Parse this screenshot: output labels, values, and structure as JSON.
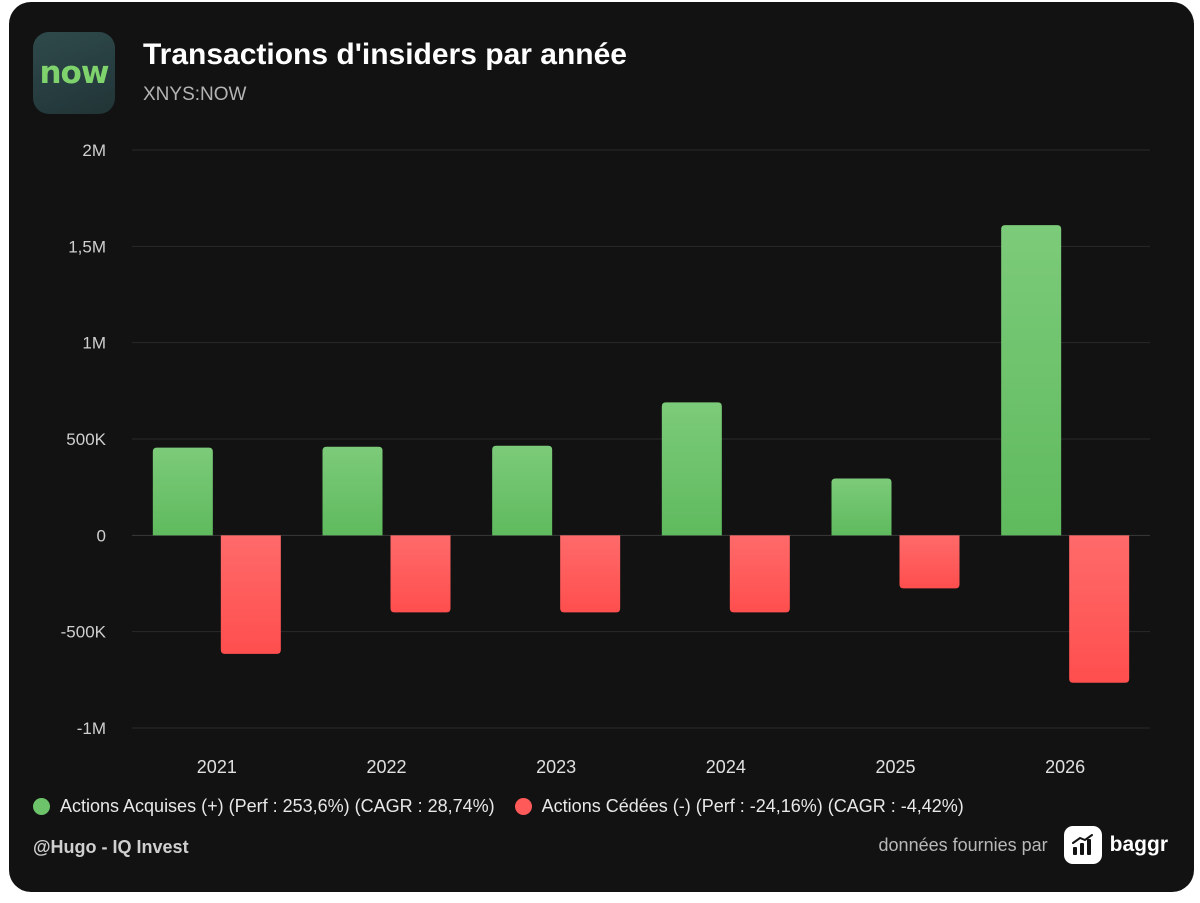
{
  "header": {
    "logo_text": "now",
    "title": "Transactions d'insiders par année",
    "subtitle": "XNYS:NOW"
  },
  "chart_data": {
    "type": "bar",
    "categories": [
      "2021",
      "2022",
      "2023",
      "2024",
      "2025",
      "2026"
    ],
    "series": [
      {
        "name": "Actions Acquises (+) (Perf : 253,6%) (CAGR : 28,74%)",
        "values": [
          455000,
          460000,
          465000,
          690000,
          295000,
          1610000
        ],
        "color": "#6cc36a"
      },
      {
        "name": "Actions Cédées (-) (Perf : -24,16%) (CAGR : -4,42%)",
        "values": [
          -615000,
          -400000,
          -400000,
          -400000,
          -275000,
          -765000
        ],
        "color": "#ff5a5a"
      }
    ],
    "ylim": [
      -1000000,
      2000000
    ],
    "yticks": [
      {
        "value": 2000000,
        "label": "2M"
      },
      {
        "value": 1500000,
        "label": "1,5M"
      },
      {
        "value": 1000000,
        "label": "1M"
      },
      {
        "value": 500000,
        "label": "500K"
      },
      {
        "value": 0,
        "label": "0"
      },
      {
        "value": -500000,
        "label": "-500K"
      },
      {
        "value": -1000000,
        "label": "-1M"
      }
    ],
    "grid": true,
    "legend_position": "bottom-left"
  },
  "footer": {
    "author": "@Hugo - IQ Invest",
    "provider_label": "données fournies par",
    "provider_name": "baggr"
  },
  "colors": {
    "background": "#121212",
    "gain": "#6cc36a",
    "loss": "#ff5a5a",
    "logo_text": "#7fd36d"
  }
}
